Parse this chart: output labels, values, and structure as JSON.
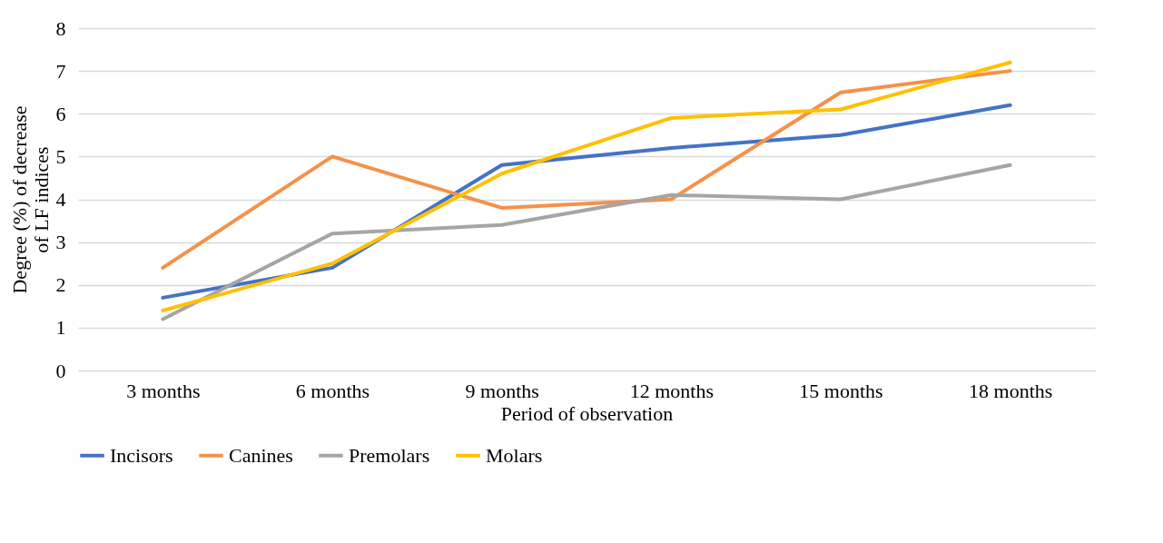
{
  "chart_data": {
    "type": "line",
    "xlabel": "Period of observation",
    "ylabel": "Degree (%) of decrease\nof LF indices",
    "categories": [
      "3 months",
      "6 months",
      "9 months",
      "12 months",
      "15 months",
      "18 months"
    ],
    "series": [
      {
        "name": "Incisors",
        "color": "#4472c4",
        "values": [
          1.7,
          2.4,
          4.8,
          5.2,
          5.5,
          6.2
        ]
      },
      {
        "name": "Canines",
        "color": "#f4914a",
        "values": [
          2.4,
          5.0,
          3.8,
          4.0,
          6.5,
          7.0
        ]
      },
      {
        "name": "Premolars",
        "color": "#a5a5a5",
        "values": [
          1.2,
          3.2,
          3.4,
          4.1,
          4.0,
          4.8
        ]
      },
      {
        "name": "Molars",
        "color": "#ffc000",
        "values": [
          1.4,
          2.5,
          4.6,
          5.9,
          6.1,
          7.2
        ]
      }
    ],
    "ylim": [
      0,
      8
    ],
    "yticks": [
      0,
      1,
      2,
      3,
      4,
      5,
      6,
      7,
      8
    ],
    "grid": "y",
    "legend": "bottom",
    "marker": "none",
    "line_style": "solid"
  }
}
